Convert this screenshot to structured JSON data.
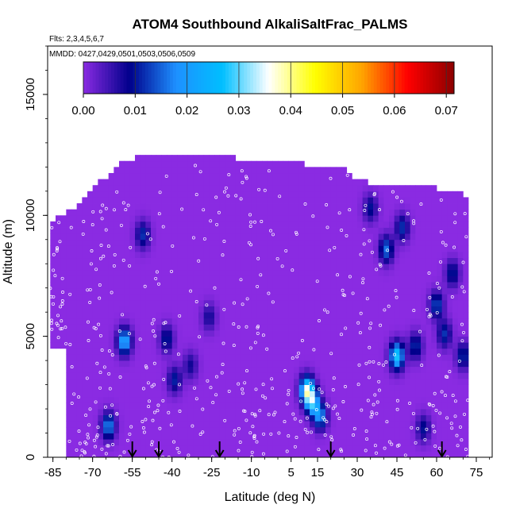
{
  "chart_data": {
    "type": "heatmap",
    "title": "ATOM4 Southbound AlkaliSaltFrac_PALMS",
    "subtitle_flights": "Flts: 2,3,4,5,6,7",
    "subtitle_dates": "MMDD: 0427,0429,0501,0503,0506,0509",
    "xlabel": "Latitude (deg N)",
    "ylabel": "Altitude (m)",
    "xlim": [
      -87,
      81
    ],
    "ylim": [
      0,
      17000
    ],
    "x_ticks": [
      -85,
      -70,
      -55,
      -40,
      -25,
      -10,
      5,
      15,
      30,
      45,
      60,
      75
    ],
    "x_tick_labels": [
      "-85",
      "-70",
      "-55",
      "-40",
      "-25",
      "-10",
      "5",
      "15",
      "30",
      "45",
      "60",
      "75"
    ],
    "y_ticks": [
      0,
      5000,
      10000,
      15000
    ],
    "y_tick_labels": [
      "0",
      "5000",
      "10000",
      "15000"
    ],
    "colorbar": {
      "ticks": [
        0.0,
        0.01,
        0.02,
        0.03,
        0.04,
        0.05,
        0.06,
        0.07
      ],
      "tick_labels": [
        "0.00",
        "0.01",
        "0.02",
        "0.03",
        "0.04",
        "0.05",
        "0.06",
        "0.07"
      ],
      "range": [
        0,
        0.0715
      ],
      "colors": [
        "#8a2be2",
        "#00008b",
        "#1e90ff",
        "#00bfff",
        "#ffffff",
        "#ffff00",
        "#ffa500",
        "#ff0000",
        "#8b0000"
      ]
    },
    "background_value": 0.0,
    "coverage_upper_m": [
      [
        -85,
        9600
      ],
      [
        -80,
        10000
      ],
      [
        -75,
        10300
      ],
      [
        -70,
        11000
      ],
      [
        -65,
        11500
      ],
      [
        -60,
        12000
      ],
      [
        -50,
        12500
      ],
      [
        -40,
        12400
      ],
      [
        -25,
        12300
      ],
      [
        -5,
        12200
      ],
      [
        10,
        12000
      ],
      [
        25,
        12000
      ],
      [
        30,
        11300
      ],
      [
        45,
        11100
      ],
      [
        60,
        11000
      ],
      [
        70,
        10800
      ],
      [
        72,
        10700
      ]
    ],
    "enhancements": [
      {
        "lat": -58,
        "alt": 4800,
        "value": 0.022
      },
      {
        "lat": -64,
        "alt": 1300,
        "value": 0.018
      },
      {
        "lat": -51,
        "alt": 9200,
        "value": 0.012
      },
      {
        "lat": -42,
        "alt": 4900,
        "value": 0.011
      },
      {
        "lat": -39,
        "alt": 3200,
        "value": 0.011
      },
      {
        "lat": -33,
        "alt": 3800,
        "value": 0.008
      },
      {
        "lat": -26,
        "alt": 5800,
        "value": 0.008
      },
      {
        "lat": 11,
        "alt": 2800,
        "value": 0.032
      },
      {
        "lat": 13,
        "alt": 2300,
        "value": 0.025
      },
      {
        "lat": 16,
        "alt": 1700,
        "value": 0.018
      },
      {
        "lat": 45,
        "alt": 4200,
        "value": 0.028
      },
      {
        "lat": 52,
        "alt": 4600,
        "value": 0.012
      },
      {
        "lat": 41,
        "alt": 8600,
        "value": 0.016
      },
      {
        "lat": 47,
        "alt": 9500,
        "value": 0.012
      },
      {
        "lat": 60,
        "alt": 6300,
        "value": 0.014
      },
      {
        "lat": 63,
        "alt": 5100,
        "value": 0.012
      },
      {
        "lat": 66,
        "alt": 7600,
        "value": 0.011
      },
      {
        "lat": 35,
        "alt": 10300,
        "value": 0.01
      },
      {
        "lat": 55,
        "alt": 1200,
        "value": 0.01
      },
      {
        "lat": 70,
        "alt": 4200,
        "value": 0.012
      }
    ],
    "arrow_latitudes": [
      -55,
      -45,
      -22,
      20,
      62
    ]
  }
}
